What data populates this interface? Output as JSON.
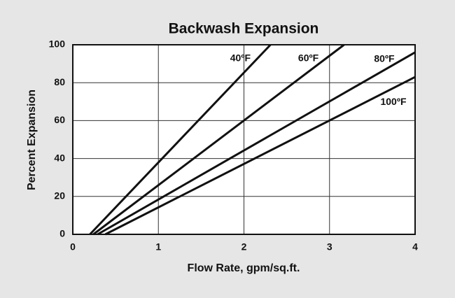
{
  "chart_data": {
    "type": "line",
    "title": "Backwash Expansion",
    "x_label": "Flow Rate, gpm/sq.ft.",
    "y_label": "Percent Expansion",
    "xlim": [
      0,
      4
    ],
    "xticks": [
      0,
      1,
      2,
      3,
      4
    ],
    "ylim": [
      0,
      100
    ],
    "yticks": [
      0,
      20,
      40,
      60,
      80,
      100
    ],
    "grid": true,
    "series": [
      {
        "name": "40ºF",
        "color": "#111111",
        "x": [
          0.2,
          2.31
        ],
        "values": [
          0,
          100
        ]
      },
      {
        "name": "60ºF",
        "color": "#111111",
        "x": [
          0.24,
          3.17
        ],
        "values": [
          0,
          100
        ]
      },
      {
        "name": "80ºF",
        "color": "#111111",
        "x": [
          0.29,
          4
        ],
        "values": [
          0,
          96
        ]
      },
      {
        "name": "100ºF",
        "color": "#111111",
        "x": [
          0.38,
          4
        ],
        "values": [
          0,
          83
        ]
      }
    ]
  }
}
